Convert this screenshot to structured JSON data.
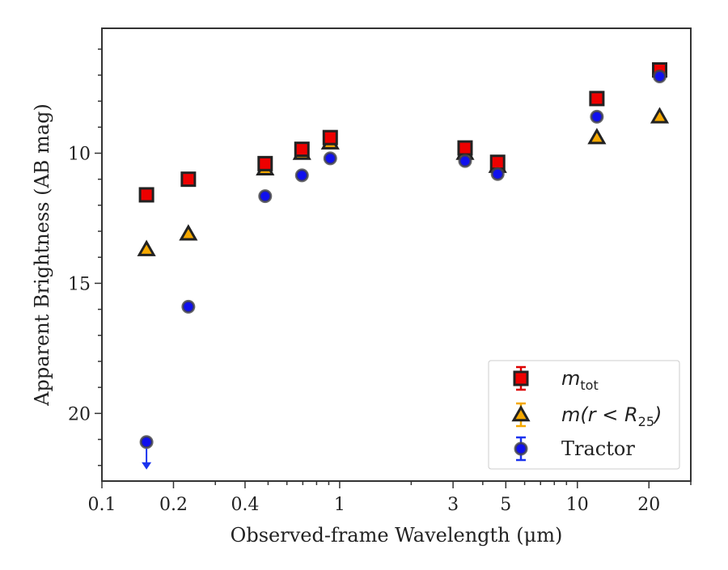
{
  "chart_data": {
    "type": "scatter",
    "title": "",
    "xlabel": "Observed-frame Wavelength (μm)",
    "ylabel": "Apparent Brightness (AB mag)",
    "xscale": "log",
    "xlim": [
      0.1,
      30
    ],
    "ylim": [
      22.6,
      5.2
    ],
    "y_inverted": true,
    "x_ticks": [
      0.1,
      0.2,
      0.4,
      1,
      3,
      5,
      10,
      20
    ],
    "x_tick_labels": [
      "0.1",
      "0.2",
      "0.4",
      "1",
      "3",
      "5",
      "10",
      "20"
    ],
    "y_ticks": [
      10,
      15,
      20
    ],
    "y_tick_labels": [
      "10",
      "15",
      "20"
    ],
    "grid": false,
    "legend_position": "lower-right",
    "series": [
      {
        "name": "m_tot",
        "legend_main": "m",
        "legend_sub": "tot",
        "marker": "square",
        "color": "#ee0000",
        "x": [
          0.154,
          0.231,
          0.486,
          0.694,
          0.913,
          3.37,
          4.62,
          12.08,
          22.19
        ],
        "y": [
          11.6,
          11.0,
          10.4,
          9.85,
          9.4,
          9.8,
          10.35,
          7.9,
          6.8
        ]
      },
      {
        "name": "m(r < R25)",
        "legend_main": "m(r < R",
        "legend_sub": "25",
        "legend_close": ")",
        "marker": "triangle",
        "color": "#f5a800",
        "x": [
          0.154,
          0.231,
          0.486,
          0.694,
          0.913,
          3.37,
          4.62,
          12.08,
          22.19
        ],
        "y": [
          13.7,
          13.1,
          10.6,
          10.0,
          9.6,
          10.0,
          10.5,
          9.4,
          8.6
        ]
      },
      {
        "name": "Tractor",
        "legend_main": "Tractor",
        "marker": "circle",
        "color": "#1010ee",
        "x": [
          0.154,
          0.231,
          0.486,
          0.694,
          0.913,
          3.37,
          4.62,
          12.08,
          22.19
        ],
        "y": [
          21.1,
          15.9,
          11.65,
          10.85,
          10.2,
          10.3,
          10.8,
          8.6,
          7.05
        ],
        "upper_limit_indices": [
          0
        ]
      }
    ]
  }
}
